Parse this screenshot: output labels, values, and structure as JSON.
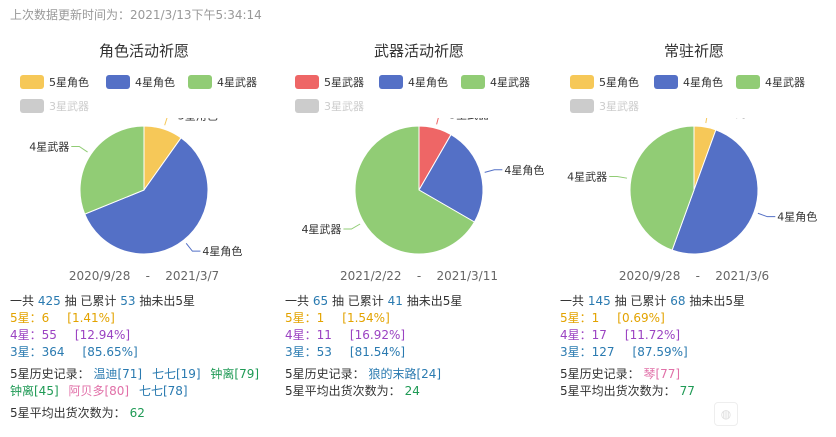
{
  "updated_text": "上次数据更新时间为：2021/3/13下午5:34:14",
  "colors": {
    "five_char": "#f6c858",
    "four_char": "#5470c6",
    "four_weapon": "#91cc75",
    "five_weapon": "#ee6666",
    "three_weapon": "#cccccc"
  },
  "panels": [
    {
      "title": "角色活动祈愿",
      "legend": [
        {
          "label": "5星角色",
          "color": "#f6c858",
          "active": true
        },
        {
          "label": "4星角色",
          "color": "#5470c6",
          "active": true
        },
        {
          "label": "4星武器",
          "color": "#91cc75",
          "active": true
        },
        {
          "label": "3星武器",
          "color": "#cccccc",
          "active": false
        }
      ],
      "date_start": "2020/9/28",
      "date_sep": "-",
      "date_end": "2021/3/7",
      "stats": {
        "total_prefix": "一共",
        "total": "425",
        "total_mid": "抽 已累计",
        "pity": "53",
        "total_suffix": "抽未出5星",
        "r5_label": "5星：",
        "r5_count": "6",
        "r5_pct": "[1.41%]",
        "r4_label": "4星：",
        "r4_count": "55",
        "r4_pct": "[12.94%]",
        "r3_label": "3星：",
        "r3_count": "364",
        "r3_pct": "[85.65%]",
        "history_label": "5星历史记录：",
        "history": [
          {
            "text": "温迪[71]",
            "color": "blue"
          },
          {
            "text": "七七[19]",
            "color": "blue"
          },
          {
            "text": "钟离[79]",
            "color": "green"
          },
          {
            "text": "钟离[45]",
            "color": "green"
          },
          {
            "text": "阿贝多[80]",
            "color": "pink"
          },
          {
            "text": "七七[78]",
            "color": "blue"
          }
        ],
        "avg_label": "5星平均出货次数为：",
        "avg_value": "62"
      }
    },
    {
      "title": "武器活动祈愿",
      "legend": [
        {
          "label": "5星武器",
          "color": "#ee6666",
          "active": true
        },
        {
          "label": "4星角色",
          "color": "#5470c6",
          "active": true
        },
        {
          "label": "4星武器",
          "color": "#91cc75",
          "active": true
        },
        {
          "label": "3星武器",
          "color": "#cccccc",
          "active": false
        }
      ],
      "date_start": "2021/2/22",
      "date_sep": "-",
      "date_end": "2021/3/11",
      "stats": {
        "total_prefix": "一共",
        "total": "65",
        "total_mid": "抽 已累计",
        "pity": "41",
        "total_suffix": "抽未出5星",
        "r5_label": "5星：",
        "r5_count": "1",
        "r5_pct": "[1.54%]",
        "r4_label": "4星：",
        "r4_count": "11",
        "r4_pct": "[16.92%]",
        "r3_label": "3星：",
        "r3_count": "53",
        "r3_pct": "[81.54%]",
        "history_label": "5星历史记录：",
        "history": [
          {
            "text": "狼的末路[24]",
            "color": "blue"
          }
        ],
        "avg_label": "5星平均出货次数为：",
        "avg_value": "24"
      }
    },
    {
      "title": "常驻祈愿",
      "legend": [
        {
          "label": "5星角色",
          "color": "#f6c858",
          "active": true
        },
        {
          "label": "4星角色",
          "color": "#5470c6",
          "active": true
        },
        {
          "label": "4星武器",
          "color": "#91cc75",
          "active": true
        },
        {
          "label": "3星武器",
          "color": "#cccccc",
          "active": false
        }
      ],
      "date_start": "2020/9/28",
      "date_sep": "-",
      "date_end": "2021/3/6",
      "stats": {
        "total_prefix": "一共",
        "total": "145",
        "total_mid": "抽 已累计",
        "pity": "68",
        "total_suffix": "抽未出5星",
        "r5_label": "5星：",
        "r5_count": "1",
        "r5_pct": "[0.69%]",
        "r4_label": "4星：",
        "r4_count": "17",
        "r4_pct": "[11.72%]",
        "r3_label": "3星：",
        "r3_count": "127",
        "r3_pct": "[87.59%]",
        "history_label": "5星历史记录：",
        "history": [
          {
            "text": "琴[77]",
            "color": "pink"
          }
        ],
        "avg_label": "5星平均出货次数为：",
        "avg_value": "77"
      }
    }
  ],
  "chart_data": [
    {
      "type": "pie",
      "title": "角色活动祈愿",
      "series": [
        {
          "name": "5星角色",
          "value": 6,
          "color": "#f6c858"
        },
        {
          "name": "4星角色",
          "value": 36,
          "color": "#5470c6"
        },
        {
          "name": "4星武器",
          "value": 19,
          "color": "#91cc75"
        }
      ],
      "legend_position": "top"
    },
    {
      "type": "pie",
      "title": "武器活动祈愿",
      "series": [
        {
          "name": "5星武器",
          "value": 1,
          "color": "#ee6666"
        },
        {
          "name": "4星角色",
          "value": 3,
          "color": "#5470c6"
        },
        {
          "name": "4星武器",
          "value": 8,
          "color": "#91cc75"
        }
      ],
      "legend_position": "top"
    },
    {
      "type": "pie",
      "title": "常驻祈愿",
      "series": [
        {
          "name": "5星角色",
          "value": 1,
          "color": "#f6c858"
        },
        {
          "name": "4星角色",
          "value": 9,
          "color": "#5470c6"
        },
        {
          "name": "4星武器",
          "value": 8,
          "color": "#91cc75"
        }
      ],
      "legend_position": "top"
    }
  ]
}
